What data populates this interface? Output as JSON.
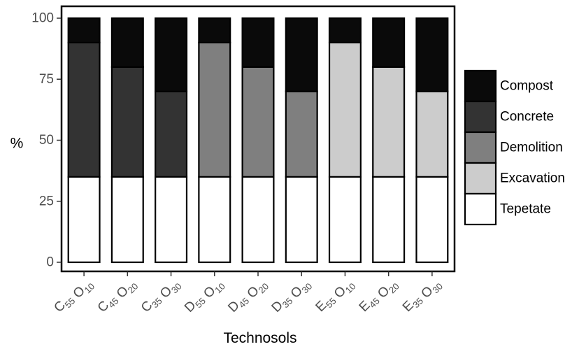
{
  "chart_data": {
    "type": "bar",
    "stacked": true,
    "ylabel": "%",
    "xlabel": "Technosols",
    "ylim": [
      0,
      100
    ],
    "yticks": [
      0,
      25,
      50,
      75,
      100
    ],
    "grid": false,
    "legend_placement": "right",
    "categories": [
      {
        "main1": "C",
        "sub1": "55",
        "main2": "O",
        "sub2": "10"
      },
      {
        "main1": "C",
        "sub1": "45",
        "main2": "O",
        "sub2": "20"
      },
      {
        "main1": "C",
        "sub1": "35",
        "main2": "O",
        "sub2": "30"
      },
      {
        "main1": "D",
        "sub1": "55",
        "main2": "O",
        "sub2": "10"
      },
      {
        "main1": "D",
        "sub1": "45",
        "main2": "O",
        "sub2": "20"
      },
      {
        "main1": "D",
        "sub1": "35",
        "main2": "O",
        "sub2": "30"
      },
      {
        "main1": "E",
        "sub1": "55",
        "main2": "O",
        "sub2": "10"
      },
      {
        "main1": "E",
        "sub1": "45",
        "main2": "O",
        "sub2": "20"
      },
      {
        "main1": "E",
        "sub1": "35",
        "main2": "O",
        "sub2": "30"
      }
    ],
    "series": [
      {
        "name": "Tepetate",
        "color": "#ffffff",
        "values": [
          35,
          35,
          35,
          35,
          35,
          35,
          35,
          35,
          35
        ]
      },
      {
        "name": "Excavation",
        "color": "#cccccc",
        "values": [
          0,
          0,
          0,
          0,
          0,
          0,
          55,
          45,
          35
        ]
      },
      {
        "name": "Demolition",
        "color": "#7f7f7f",
        "values": [
          0,
          0,
          0,
          55,
          45,
          35,
          0,
          0,
          0
        ]
      },
      {
        "name": "Concrete",
        "color": "#333333",
        "values": [
          55,
          45,
          35,
          0,
          0,
          0,
          0,
          0,
          0
        ]
      },
      {
        "name": "Compost",
        "color": "#0a0a0a",
        "values": [
          10,
          20,
          30,
          10,
          20,
          30,
          10,
          20,
          30
        ]
      }
    ],
    "legend_order": [
      "Compost",
      "Concrete",
      "Demolition",
      "Excavation",
      "Tepetate"
    ]
  }
}
